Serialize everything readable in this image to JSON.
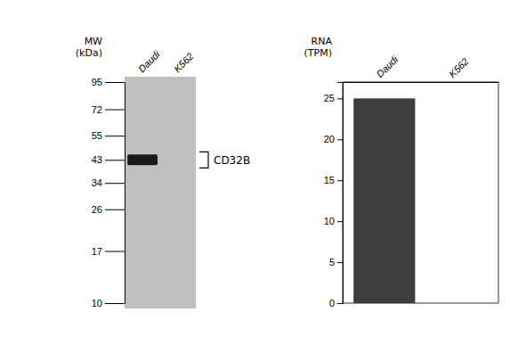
{
  "chart_data": [
    {
      "type": "blot",
      "categories": [
        "Daudi",
        "K562"
      ],
      "values": [
        43,
        null
      ],
      "color": "#1a1a1a",
      "ylabel": "MW\n(kDa)",
      "log": "y",
      "ylim": [
        10,
        95
      ],
      "yticks": [
        95,
        72,
        55,
        43,
        34,
        26,
        17,
        10
      ],
      "annotations": [
        "CD32B"
      ]
    },
    {
      "type": "bar",
      "categories": [
        "Daudi",
        "K562"
      ],
      "values": [
        25,
        0
      ],
      "color": "#3d3d3d",
      "ylabel": "RNA\n(TPM)",
      "ylim": [
        0,
        27
      ],
      "yticks": [
        0,
        5,
        10,
        15,
        20,
        25
      ]
    }
  ]
}
